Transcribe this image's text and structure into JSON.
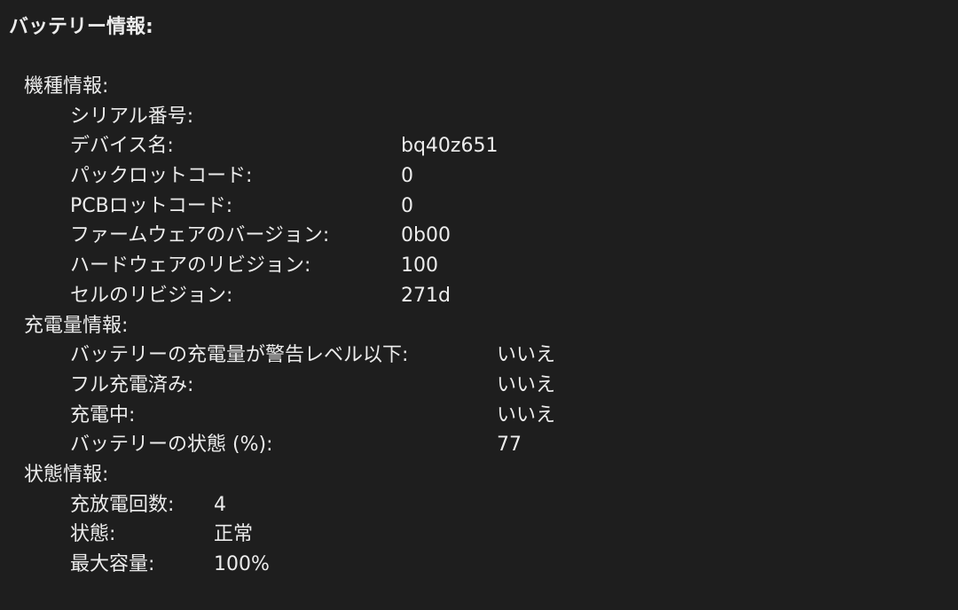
{
  "title": "バッテリー情報:",
  "sections": [
    {
      "label": "機種情報:",
      "rows": [
        {
          "label": "シリアル番号:",
          "value": ""
        },
        {
          "label": "デバイス名:",
          "value": "bq40z651"
        },
        {
          "label": "パックロットコード:",
          "value": "0"
        },
        {
          "label": "PCBロットコード:",
          "value": "0"
        },
        {
          "label": "ファームウェアのバージョン:",
          "value": "0b00"
        },
        {
          "label": "ハードウェアのリビジョン:",
          "value": "100"
        },
        {
          "label": "セルのリビジョン:",
          "value": "271d"
        }
      ]
    },
    {
      "label": "充電量情報:",
      "rows": [
        {
          "label": "バッテリーの充電量が警告レベル以下:",
          "value": "いいえ"
        },
        {
          "label": "フル充電済み:",
          "value": "いいえ"
        },
        {
          "label": "充電中:",
          "value": "いいえ"
        },
        {
          "label": "バッテリーの状態 (%):",
          "value": "77"
        }
      ]
    },
    {
      "label": "状態情報:",
      "rows": [
        {
          "label": "充放電回数:",
          "value": "4"
        },
        {
          "label": "状態:",
          "value": "正常"
        },
        {
          "label": "最大容量:",
          "value": "100%"
        }
      ]
    }
  ]
}
